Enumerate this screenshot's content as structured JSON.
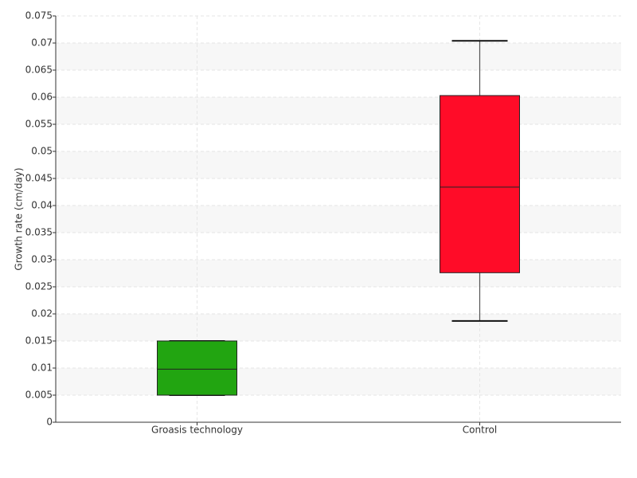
{
  "chart_data": {
    "type": "box",
    "y_label": "Growth rate (cm/day)",
    "categories": [
      "Groasis technology",
      "Control"
    ],
    "boxes": [
      {
        "min": 0.005,
        "q1": 0.005,
        "median": 0.0098,
        "q3": 0.015,
        "max": 0.015,
        "color": "#22a511"
      },
      {
        "min": 0.0187,
        "q1": 0.0276,
        "median": 0.0434,
        "q3": 0.0603,
        "max": 0.0704,
        "color": "#ff0c28"
      }
    ],
    "ylim": [
      0,
      0.075
    ],
    "yticks": [
      0,
      0.005,
      0.01,
      0.015,
      0.02,
      0.025,
      0.03,
      0.035,
      0.04,
      0.045,
      0.05,
      0.055,
      0.06,
      0.065,
      0.07,
      0.075
    ],
    "grid": true
  }
}
